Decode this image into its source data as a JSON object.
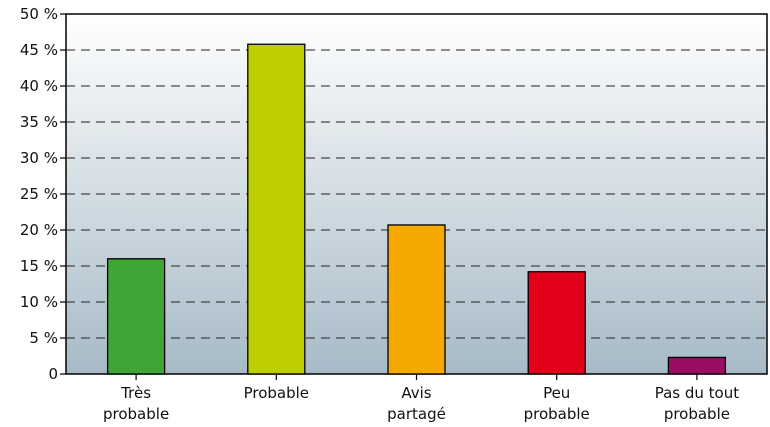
{
  "chart_data": {
    "type": "bar",
    "categories": [
      [
        "Très",
        "probable"
      ],
      [
        "Probable"
      ],
      [
        "Avis",
        "partagé"
      ],
      [
        "Peu",
        "probable"
      ],
      [
        "Pas du tout",
        "probable"
      ]
    ],
    "values": [
      16,
      45.8,
      20.7,
      14.2,
      2.3
    ],
    "colors": [
      "#3fa535",
      "#bdcf00",
      "#f5a800",
      "#e3001b",
      "#9b0d63"
    ],
    "ylim": [
      0,
      50
    ],
    "yticks": [
      0,
      5,
      10,
      15,
      20,
      25,
      30,
      35,
      40,
      45,
      50
    ],
    "ytick_labels": [
      "0",
      "5 %",
      "10 %",
      "15 %",
      "20 %",
      "25 %",
      "30 %",
      "35 %",
      "40 %",
      "45 %",
      "50 %"
    ],
    "grid": "dashed horizontal",
    "background": "gradient white to grey-blue",
    "title": "",
    "xlabel": "",
    "ylabel": ""
  }
}
